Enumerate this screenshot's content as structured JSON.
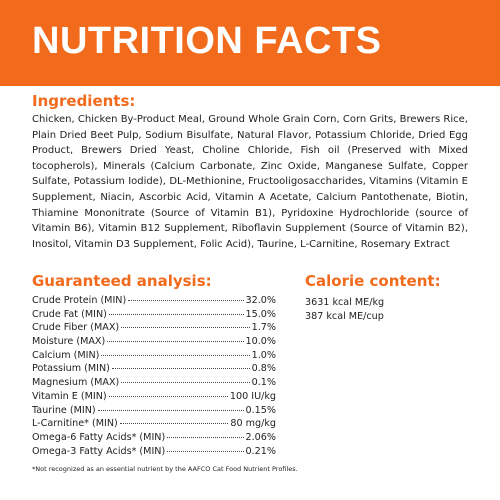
{
  "header": {
    "title": "NUTRITION FACTS"
  },
  "ingredients": {
    "heading": "Ingredients:",
    "text": "Chicken, Chicken By-Product Meal, Ground Whole Grain Corn, Corn Grits, Brewers Rice, Plain Dried Beet Pulp, Sodium Bisulfate, Natural Flavor, Potassium Chloride, Dried Egg Product, Brewers Dried Yeast, Choline Chloride, Fish oil (Preserved with Mixed tocopherols), Minerals (Calcium Carbonate, Zinc Oxide, Manganese Sulfate, Copper Sulfate, Potassium Iodide), DL-Methionine, Fructooligosaccharides, Vitamins (Vitamin E Supplement, Niacin, Ascorbic Acid, Vitamin A Acetate, Calcium Pantothenate, Biotin, Thiamine Mononitrate (Source of Vitamin B1), Pyridoxine Hydrochloride (source of Vitamin B6), Vitamin B12 Supplement, Riboflavin Supplement (Source of Vitamin B2), Inositol, Vitamin D3 Supplement, Folic Acid), Taurine, L-Carnitine, Rosemary Extract"
  },
  "analysis": {
    "heading": "Guaranteed analysis:",
    "rows": [
      [
        "Crude Protein (MIN)",
        "32.0%"
      ],
      [
        "Crude Fat (MIN)",
        "15.0%"
      ],
      [
        "Crude Fiber (MAX)",
        "1.7%"
      ],
      [
        "Moisture (MAX)",
        "10.0%"
      ],
      [
        "Calcium (MIN)",
        "1.0%"
      ],
      [
        "Potassium (MIN)",
        "0.8%"
      ],
      [
        "Magnesium (MAX)",
        "0.1%"
      ],
      [
        "Vitamin E (MIN)",
        "100 IU/kg"
      ],
      [
        "Taurine (MIN)",
        "0.15%"
      ],
      [
        "L-Carnitine* (MIN)",
        "80 mg/kg"
      ],
      [
        "Omega-6 Fatty Acids* (MIN)",
        "2.06%"
      ],
      [
        "Omega-3 Fatty Acids* (MIN)",
        "0.21%"
      ]
    ]
  },
  "calories": {
    "heading": "Calorie content:",
    "lines": [
      "3631 kcal ME/kg",
      "387 kcal ME/cup"
    ]
  },
  "footnote": "*Not recognized as an essential nutrient by the AAFCO Cat Food Nutrient Profiles."
}
